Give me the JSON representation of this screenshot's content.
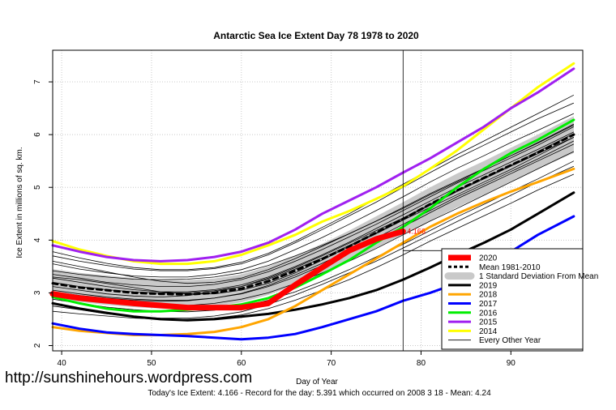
{
  "chart_data": {
    "type": "line",
    "title": "Antarctic Sea Ice Extent Day 78 1978 to 2020",
    "xlabel": "Day of Year",
    "ylabel": "Ice Extent in millions of sq. km.",
    "xlim": [
      39,
      98
    ],
    "ylim": [
      1.9,
      7.6
    ],
    "xticks": [
      40,
      50,
      60,
      70,
      80,
      90
    ],
    "yticks": [
      2,
      3,
      4,
      5,
      6,
      7
    ],
    "grid": true,
    "legend_position": "bottom-right",
    "current_day": 78,
    "current_value_label": "4.166",
    "footer": "Today's Ice Extent: 4.166  - Record for the day: 5.391 which occurred on 2008 3 18  - Mean: 4.24",
    "watermark": "http://sunshinehours.wordpress.com",
    "band": {
      "name": "1 Standard Deviation From Mean",
      "x": [
        39,
        42,
        45,
        48,
        51,
        54,
        57,
        60,
        63,
        66,
        69,
        72,
        75,
        78,
        81,
        84,
        87,
        90,
        93,
        97
      ],
      "upper": [
        3.45,
        3.38,
        3.33,
        3.28,
        3.25,
        3.24,
        3.27,
        3.35,
        3.5,
        3.7,
        3.93,
        4.18,
        4.45,
        4.72,
        5.0,
        5.26,
        5.5,
        5.75,
        6.0,
        6.35
      ],
      "lower": [
        2.9,
        2.83,
        2.77,
        2.73,
        2.7,
        2.7,
        2.74,
        2.82,
        2.96,
        3.15,
        3.36,
        3.6,
        3.85,
        4.1,
        4.37,
        4.62,
        4.86,
        5.1,
        5.35,
        5.65
      ]
    },
    "series": [
      {
        "name": "Mean 1981-2010",
        "color": "#000000",
        "width": 3,
        "dash": "6,5",
        "x": [
          39,
          42,
          45,
          48,
          51,
          54,
          57,
          60,
          63,
          66,
          69,
          72,
          75,
          78,
          81,
          84,
          87,
          90,
          93,
          97
        ],
        "values": [
          3.18,
          3.1,
          3.05,
          3.0,
          2.98,
          2.97,
          3.0,
          3.08,
          3.22,
          3.42,
          3.64,
          3.88,
          4.14,
          4.4,
          4.68,
          4.94,
          5.18,
          5.42,
          5.66,
          6.0
        ]
      },
      {
        "name": "2020",
        "color": "#ff0000",
        "width": 7,
        "x": [
          39,
          42,
          45,
          48,
          51,
          54,
          57,
          60,
          63,
          66,
          69,
          72,
          75,
          78
        ],
        "values": [
          2.98,
          2.9,
          2.85,
          2.8,
          2.76,
          2.72,
          2.72,
          2.72,
          2.8,
          3.15,
          3.48,
          3.8,
          4.02,
          4.166
        ]
      },
      {
        "name": "2019",
        "color": "#000000",
        "width": 3,
        "x": [
          39,
          42,
          45,
          48,
          51,
          54,
          57,
          60,
          63,
          66,
          69,
          72,
          75,
          78,
          81,
          84,
          87,
          90,
          93,
          97
        ],
        "values": [
          2.8,
          2.7,
          2.62,
          2.55,
          2.5,
          2.48,
          2.5,
          2.55,
          2.6,
          2.68,
          2.78,
          2.9,
          3.05,
          3.25,
          3.48,
          3.72,
          3.95,
          4.2,
          4.5,
          4.9
        ]
      },
      {
        "name": "2018",
        "color": "#ffa500",
        "width": 3,
        "x": [
          39,
          42,
          45,
          48,
          51,
          54,
          57,
          60,
          63,
          66,
          69,
          72,
          75,
          78,
          81,
          84,
          87,
          90,
          93,
          97
        ],
        "values": [
          2.35,
          2.28,
          2.24,
          2.2,
          2.2,
          2.22,
          2.26,
          2.35,
          2.5,
          2.75,
          3.05,
          3.35,
          3.65,
          3.95,
          4.25,
          4.5,
          4.72,
          4.92,
          5.1,
          5.35
        ]
      },
      {
        "name": "2017",
        "color": "#0000ff",
        "width": 3,
        "x": [
          39,
          42,
          45,
          48,
          51,
          54,
          57,
          60,
          63,
          66,
          69,
          72,
          75,
          78,
          81,
          84,
          87,
          90,
          93,
          97
        ],
        "values": [
          2.42,
          2.32,
          2.25,
          2.22,
          2.2,
          2.18,
          2.15,
          2.12,
          2.15,
          2.22,
          2.35,
          2.5,
          2.65,
          2.85,
          3.0,
          3.18,
          3.45,
          3.78,
          4.1,
          4.45
        ]
      },
      {
        "name": "2016",
        "color": "#00ee00",
        "width": 3,
        "x": [
          39,
          42,
          45,
          48,
          51,
          54,
          57,
          60,
          63,
          66,
          69,
          72,
          75,
          78,
          81,
          84,
          87,
          90,
          93,
          97
        ],
        "values": [
          2.92,
          2.8,
          2.7,
          2.65,
          2.65,
          2.68,
          2.72,
          2.78,
          2.9,
          3.1,
          3.35,
          3.62,
          3.95,
          4.25,
          4.6,
          5.0,
          5.35,
          5.65,
          5.9,
          6.28
        ]
      },
      {
        "name": "2015",
        "color": "#a020f0",
        "width": 3,
        "x": [
          39,
          42,
          45,
          48,
          51,
          54,
          57,
          60,
          63,
          66,
          69,
          72,
          75,
          78,
          81,
          84,
          87,
          90,
          93,
          97
        ],
        "values": [
          3.9,
          3.78,
          3.68,
          3.62,
          3.6,
          3.62,
          3.68,
          3.78,
          3.95,
          4.2,
          4.5,
          4.75,
          5.0,
          5.28,
          5.55,
          5.85,
          6.15,
          6.5,
          6.8,
          7.25
        ]
      },
      {
        "name": "2014",
        "color": "#ffff00",
        "width": 3,
        "x": [
          39,
          42,
          45,
          48,
          51,
          54,
          57,
          60,
          63,
          66,
          69,
          72,
          75,
          78,
          81,
          84,
          87,
          90,
          93,
          97
        ],
        "values": [
          3.98,
          3.82,
          3.7,
          3.6,
          3.55,
          3.55,
          3.6,
          3.72,
          3.9,
          4.1,
          4.35,
          4.55,
          4.78,
          5.02,
          5.35,
          5.7,
          6.1,
          6.5,
          6.9,
          7.35
        ]
      }
    ],
    "other_years": {
      "name": "Every Other Year",
      "x": [
        39,
        42,
        45,
        48,
        51,
        54,
        57,
        60,
        63,
        66,
        69,
        72,
        75,
        78,
        81,
        84,
        87,
        90,
        93,
        97
      ],
      "lines": [
        [
          3.7,
          3.6,
          3.52,
          3.45,
          3.42,
          3.42,
          3.46,
          3.55,
          3.72,
          3.95,
          4.2,
          4.46,
          4.72,
          5.0,
          5.28,
          5.55,
          5.8,
          6.05,
          6.3,
          6.6
        ],
        [
          3.55,
          3.45,
          3.38,
          3.32,
          3.3,
          3.3,
          3.35,
          3.44,
          3.6,
          3.82,
          4.05,
          4.3,
          4.56,
          4.82,
          5.1,
          5.36,
          5.6,
          5.85,
          6.08,
          6.4
        ],
        [
          3.35,
          3.28,
          3.2,
          3.15,
          3.12,
          3.12,
          3.16,
          3.25,
          3.4,
          3.6,
          3.82,
          4.06,
          4.3,
          4.56,
          4.82,
          5.08,
          5.32,
          5.56,
          5.8,
          6.15
        ],
        [
          3.2,
          3.12,
          3.06,
          3.02,
          3.0,
          3.0,
          3.04,
          3.12,
          3.26,
          3.45,
          3.66,
          3.9,
          4.14,
          4.4,
          4.66,
          4.92,
          5.16,
          5.4,
          5.64,
          5.95
        ],
        [
          3.05,
          2.98,
          2.92,
          2.88,
          2.86,
          2.86,
          2.9,
          2.98,
          3.12,
          3.3,
          3.52,
          3.75,
          4.0,
          4.25,
          4.52,
          4.78,
          5.02,
          5.26,
          5.5,
          5.82
        ],
        [
          2.95,
          2.88,
          2.82,
          2.78,
          2.76,
          2.76,
          2.8,
          2.88,
          3.0,
          3.18,
          3.38,
          3.6,
          3.84,
          4.1,
          4.36,
          4.6,
          4.85,
          5.1,
          5.35,
          5.68
        ],
        [
          2.88,
          2.8,
          2.73,
          2.68,
          2.65,
          2.64,
          2.67,
          2.74,
          2.86,
          3.02,
          3.22,
          3.44,
          3.68,
          3.92,
          4.18,
          4.44,
          4.68,
          4.92,
          5.16,
          5.5
        ],
        [
          3.3,
          3.25,
          3.18,
          3.1,
          3.02,
          2.98,
          2.98,
          3.05,
          3.18,
          3.38,
          3.62,
          3.88,
          4.12,
          4.38,
          4.62,
          4.86,
          5.1,
          5.34,
          5.6,
          5.95
        ],
        [
          3.12,
          3.05,
          2.98,
          2.94,
          2.92,
          2.95,
          3.02,
          3.12,
          3.28,
          3.48,
          3.7,
          3.94,
          4.18,
          4.42,
          4.68,
          4.94,
          5.18,
          5.42,
          5.68,
          6.02
        ],
        [
          3.6,
          3.5,
          3.4,
          3.3,
          3.22,
          3.18,
          3.2,
          3.28,
          3.44,
          3.65,
          3.88,
          4.12,
          4.36,
          4.62,
          4.88,
          5.12,
          5.36,
          5.6,
          5.84,
          6.18
        ],
        [
          2.75,
          2.68,
          2.6,
          2.55,
          2.52,
          2.52,
          2.56,
          2.64,
          2.78,
          2.96,
          3.16,
          3.38,
          3.6,
          3.85,
          4.1,
          4.35,
          4.6,
          4.85,
          5.1,
          5.4
        ],
        [
          3.42,
          3.35,
          3.3,
          3.26,
          3.25,
          3.26,
          3.3,
          3.38,
          3.52,
          3.7,
          3.9,
          4.12,
          4.36,
          4.6,
          4.86,
          5.1,
          5.35,
          5.6,
          5.85,
          6.2
        ],
        [
          2.65,
          2.6,
          2.56,
          2.52,
          2.5,
          2.5,
          2.52,
          2.58,
          2.7,
          2.86,
          3.05,
          3.25,
          3.48,
          3.72,
          3.98,
          4.22,
          4.46,
          4.7,
          4.95,
          5.25
        ],
        [
          3.28,
          3.2,
          3.12,
          3.06,
          3.02,
          3.02,
          3.06,
          3.15,
          3.3,
          3.5,
          3.72,
          3.96,
          4.22,
          4.48,
          4.74,
          5.0,
          5.24,
          5.48,
          5.72,
          6.05
        ],
        [
          3.02,
          2.95,
          2.9,
          2.86,
          2.84,
          2.85,
          2.9,
          2.99,
          3.14,
          3.34,
          3.56,
          3.8,
          4.04,
          4.3,
          4.56,
          4.82,
          5.06,
          5.3,
          5.54,
          5.88
        ],
        [
          3.78,
          3.66,
          3.56,
          3.48,
          3.44,
          3.44,
          3.48,
          3.58,
          3.75,
          3.98,
          4.24,
          4.5,
          4.78,
          5.06,
          5.34,
          5.62,
          5.88,
          6.14,
          6.4,
          6.75
        ]
      ]
    }
  }
}
